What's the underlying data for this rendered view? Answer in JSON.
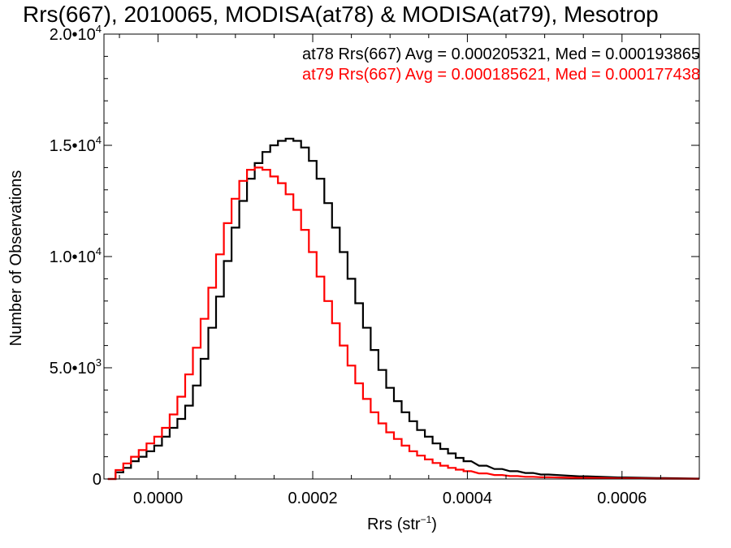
{
  "chart_data": {
    "type": "line",
    "title": "Rrs(667), 2010065, MODISA(at78) & MODISA(at79), Mesotrop",
    "xlabel": "Rrs (str",
    "xlabel_sup": "−1",
    "xlabel_close": ")",
    "ylabel": "Number of Observations",
    "xlim": [
      -7e-05,
      0.0007
    ],
    "ylim": [
      0,
      20000
    ],
    "grid": false,
    "legend": "top-right",
    "x_ticks": [
      {
        "value": 0.0,
        "label": "0.0000"
      },
      {
        "value": 0.0002,
        "label": "0.0002"
      },
      {
        "value": 0.0004,
        "label": "0.0004"
      },
      {
        "value": 0.0006,
        "label": "0.0006"
      }
    ],
    "y_ticks": [
      {
        "value": 0,
        "base": "0",
        "exp": ""
      },
      {
        "value": 5000,
        "base": "5.0•10",
        "exp": "3"
      },
      {
        "value": 10000,
        "base": "1.0•10",
        "exp": "4"
      },
      {
        "value": 15000,
        "base": "1.5•10",
        "exp": "4"
      },
      {
        "value": 20000,
        "base": "2.0•10",
        "exp": "4"
      }
    ],
    "x_minor_step": 5e-05,
    "y_minor_step": 1000,
    "annotations": [
      {
        "text": "at78 Rrs(667) Avg = 0.000205321, Med = 0.000193865",
        "color": "#000000"
      },
      {
        "text": "at79 Rrs(667) Avg = 0.000185621, Med = 0.000177438",
        "color": "#ff0000"
      }
    ],
    "series": [
      {
        "color": "#000000",
        "x": [
          -6e-05,
          -5e-05,
          -4e-05,
          -3e-05,
          -2e-05,
          -1e-05,
          0.0,
          1e-05,
          2e-05,
          3e-05,
          4e-05,
          5e-05,
          6e-05,
          7e-05,
          8e-05,
          9e-05,
          0.0001,
          0.00011,
          0.00012,
          0.00013,
          0.00014,
          0.00015,
          0.00016,
          0.00017,
          0.00018,
          0.00019,
          0.0002,
          0.00021,
          0.00022,
          0.00023,
          0.00024,
          0.00025,
          0.00026,
          0.00027,
          0.00028,
          0.00029,
          0.0003,
          0.00031,
          0.00032,
          0.00033,
          0.00034,
          0.00035,
          0.00036,
          0.00037,
          0.00038,
          0.00039,
          0.0004,
          0.00042,
          0.00044,
          0.00046,
          0.00048,
          0.0005,
          0.00055,
          0.0006,
          0.00065,
          0.0007
        ],
        "values": [
          0,
          300,
          500,
          800,
          1000,
          1250,
          1500,
          1900,
          2300,
          2700,
          3300,
          4200,
          5400,
          6800,
          8200,
          9800,
          11300,
          12500,
          13500,
          14200,
          14700,
          15000,
          15200,
          15300,
          15200,
          14900,
          14300,
          13500,
          12400,
          11300,
          10200,
          9000,
          7900,
          6800,
          5800,
          4900,
          4100,
          3500,
          3000,
          2600,
          2200,
          1900,
          1600,
          1350,
          1150,
          950,
          800,
          600,
          450,
          350,
          270,
          200,
          120,
          70,
          40,
          20
        ]
      },
      {
        "color": "#ff0000",
        "x": [
          -6e-05,
          -5e-05,
          -4e-05,
          -3e-05,
          -2e-05,
          -1e-05,
          0.0,
          1e-05,
          2e-05,
          3e-05,
          4e-05,
          5e-05,
          6e-05,
          7e-05,
          8e-05,
          9e-05,
          0.0001,
          0.00011,
          0.00012,
          0.00013,
          0.00014,
          0.00015,
          0.00016,
          0.00017,
          0.00018,
          0.00019,
          0.0002,
          0.00021,
          0.00022,
          0.00023,
          0.00024,
          0.00025,
          0.00026,
          0.00027,
          0.00028,
          0.00029,
          0.0003,
          0.00031,
          0.00032,
          0.00033,
          0.00034,
          0.00035,
          0.00036,
          0.00037,
          0.00038,
          0.00039,
          0.0004,
          0.00042,
          0.00044,
          0.00046,
          0.00048,
          0.0005,
          0.00055,
          0.0006,
          0.00065,
          0.0007
        ],
        "values": [
          0,
          400,
          700,
          1000,
          1300,
          1600,
          1900,
          2300,
          2900,
          3700,
          4700,
          5900,
          7200,
          8600,
          10100,
          11500,
          12600,
          13400,
          13900,
          14000,
          13900,
          13600,
          13300,
          12800,
          12100,
          11200,
          10200,
          9100,
          8000,
          7000,
          6000,
          5100,
          4300,
          3600,
          3000,
          2500,
          2100,
          1800,
          1500,
          1250,
          1050,
          880,
          720,
          600,
          500,
          420,
          350,
          250,
          180,
          130,
          100,
          80,
          50,
          30,
          15,
          8
        ]
      }
    ]
  }
}
